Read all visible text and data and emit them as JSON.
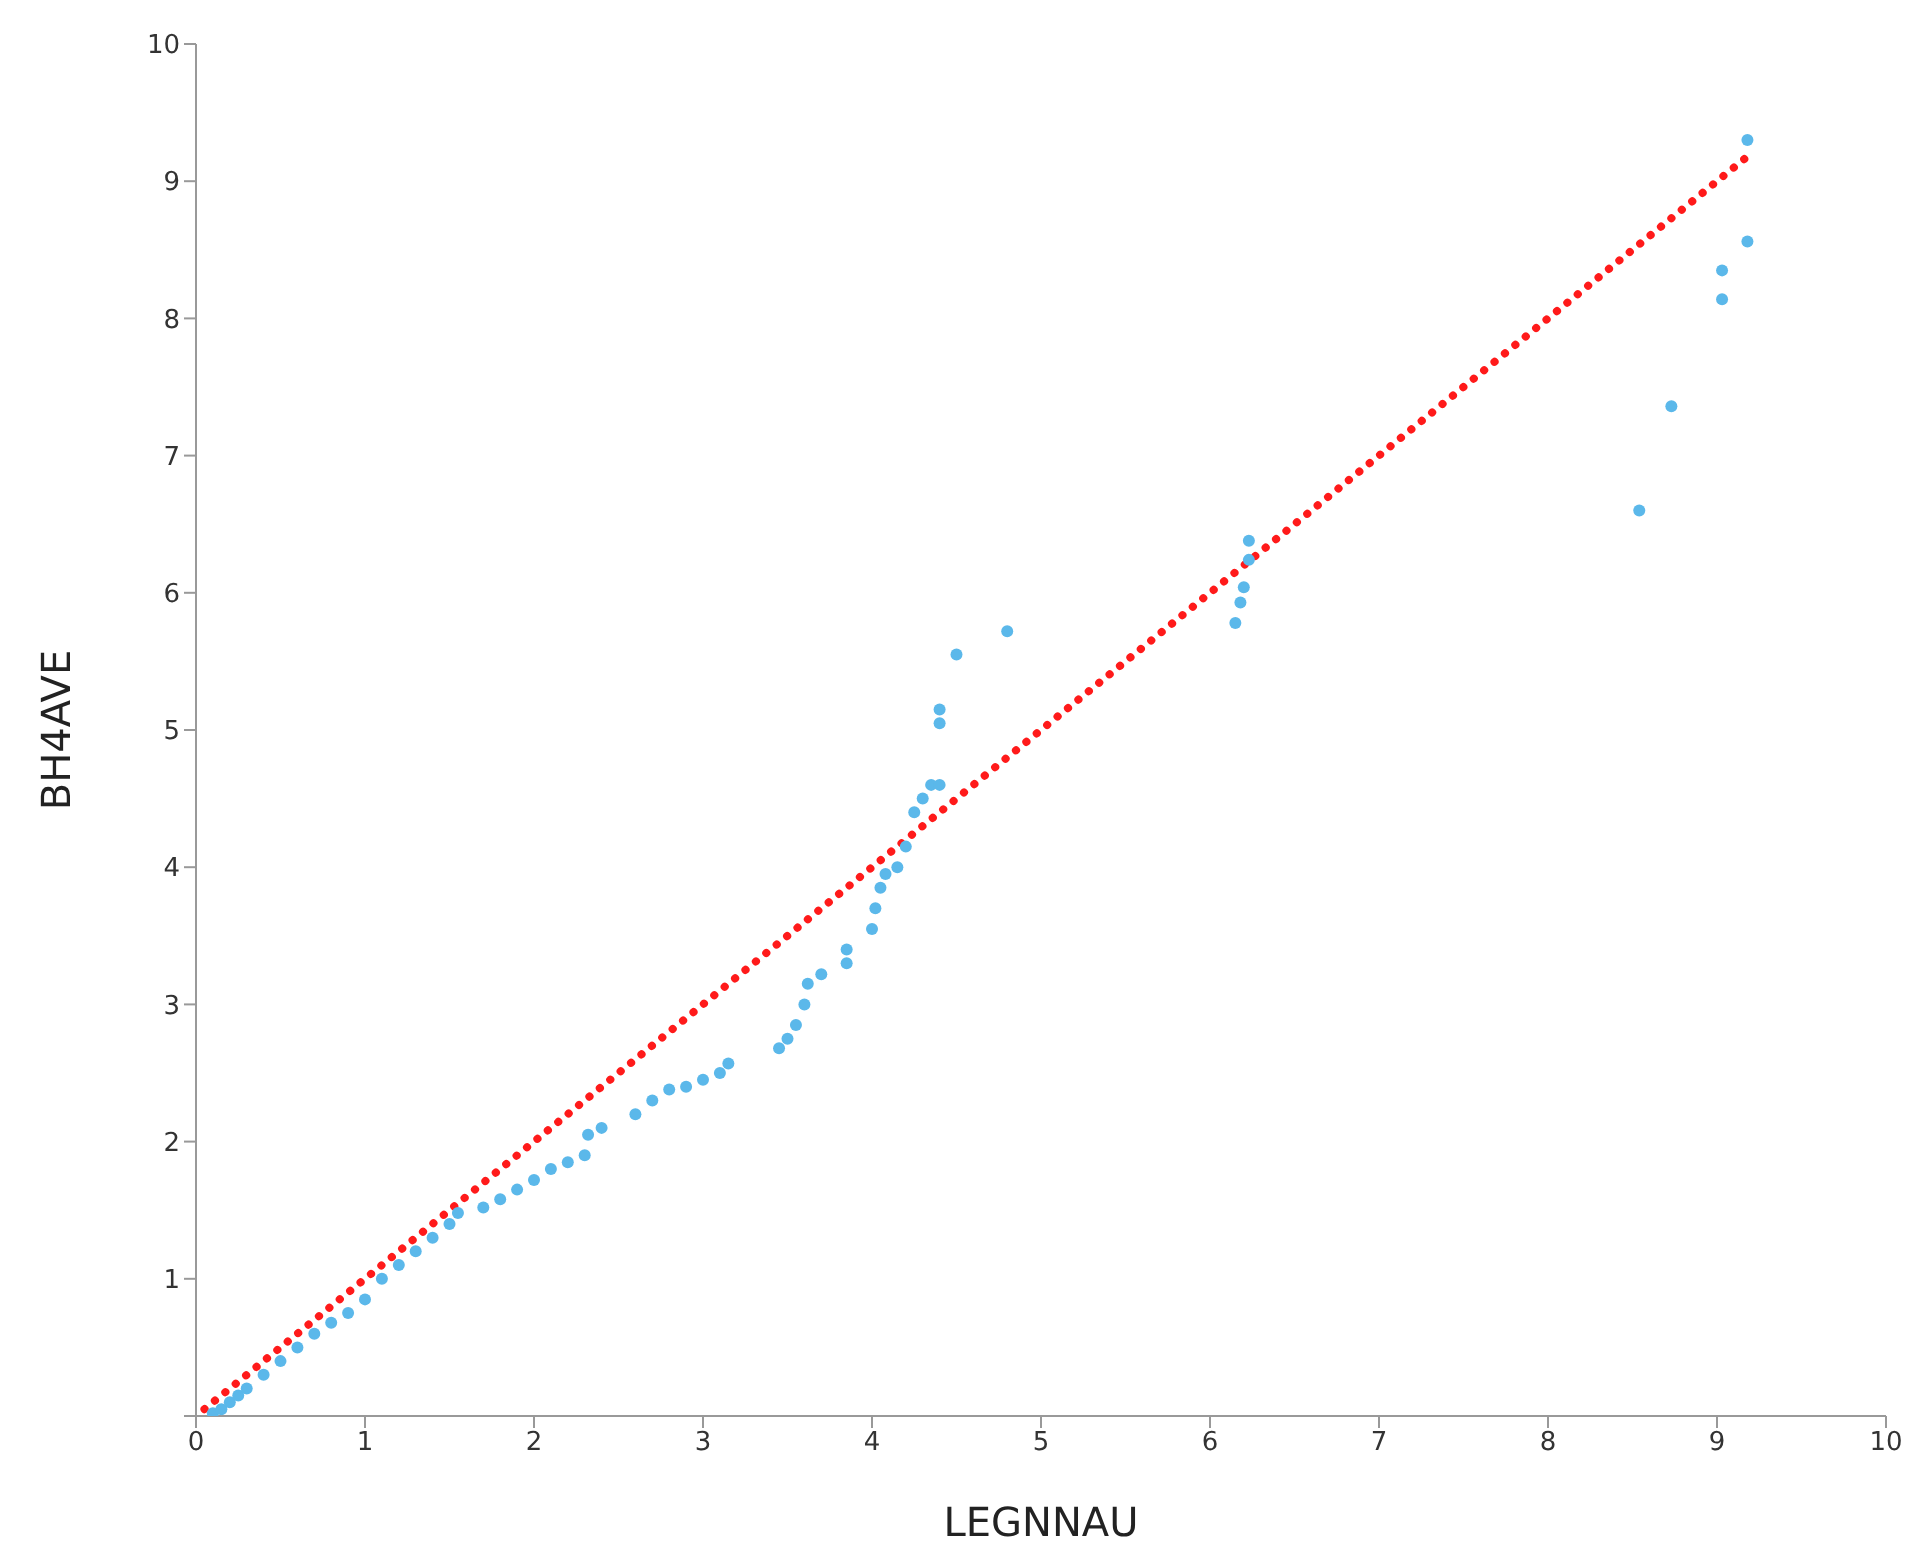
{
  "chart_data": {
    "type": "scatter",
    "xlabel": "LEGNNAU",
    "ylabel": "BH4AVE",
    "xlim": [
      0,
      10
    ],
    "xticks": [
      0,
      1,
      2,
      3,
      4,
      5,
      6,
      7,
      8,
      9,
      10
    ],
    "ylim": [
      0,
      10
    ],
    "yticks": [
      {
        "value": 0,
        "label": null
      },
      1,
      2,
      3,
      4,
      5,
      6,
      7,
      8,
      9,
      10
    ],
    "grid": false,
    "marker": "circle",
    "series": [
      {
        "color": "#5bb8ea",
        "x": [
          0.1,
          0.15,
          0.2,
          0.25,
          0.3,
          0.4,
          0.5,
          0.6,
          0.7,
          0.8,
          0.9,
          1.0,
          1.1,
          1.2,
          1.3,
          1.4,
          1.5,
          1.55,
          1.7,
          1.8,
          1.9,
          2.0,
          2.1,
          2.2,
          2.3,
          2.32,
          2.4,
          2.6,
          2.7,
          2.8,
          2.9,
          3.0,
          3.1,
          3.15,
          3.45,
          3.5,
          3.55,
          3.6,
          3.62,
          3.7,
          3.85,
          3.85,
          4.0,
          4.02,
          4.05,
          4.08,
          4.15,
          4.2,
          4.25,
          4.3,
          4.35,
          4.4,
          4.4,
          4.4,
          4.5,
          4.8,
          6.15,
          6.18,
          6.2,
          6.23,
          6.23,
          8.54,
          8.73,
          9.03,
          9.03,
          9.18,
          9.18
        ],
        "values": [
          0.02,
          0.05,
          0.1,
          0.15,
          0.2,
          0.3,
          0.4,
          0.5,
          0.6,
          0.68,
          0.75,
          0.85,
          1.0,
          1.1,
          1.2,
          1.3,
          1.4,
          1.48,
          1.52,
          1.58,
          1.65,
          1.72,
          1.8,
          1.85,
          1.9,
          2.05,
          2.1,
          2.2,
          2.3,
          2.38,
          2.4,
          2.45,
          2.5,
          2.57,
          2.68,
          2.75,
          2.85,
          3.0,
          3.15,
          3.22,
          3.3,
          3.4,
          3.55,
          3.7,
          3.85,
          3.95,
          4.0,
          4.15,
          4.4,
          4.5,
          4.6,
          4.6,
          5.05,
          5.15,
          5.55,
          5.72,
          5.78,
          5.93,
          6.04,
          6.24,
          6.38,
          6.6,
          7.36,
          8.14,
          8.35,
          8.56,
          9.3
        ]
      },
      {
        "type": "line",
        "color": "#ff1a1a",
        "line_style": "dotted",
        "marker": "none",
        "x": [
          0.05,
          9.17
        ],
        "values": [
          0.05,
          9.17
        ]
      }
    ]
  }
}
